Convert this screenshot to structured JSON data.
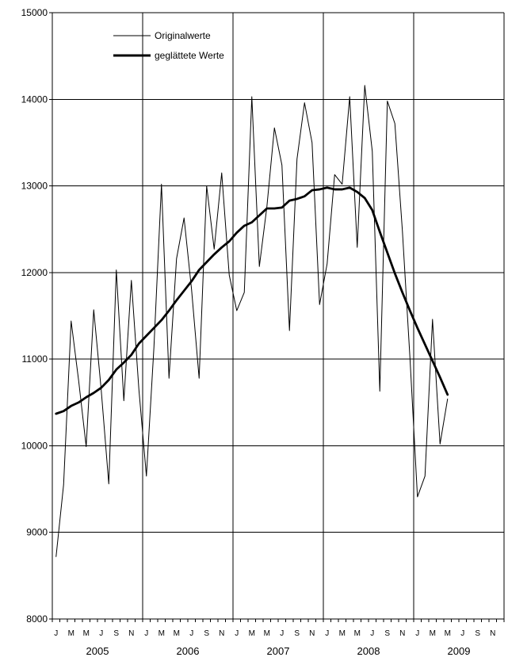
{
  "chart_data": {
    "type": "line",
    "title": "",
    "xlabel": "",
    "ylabel": "",
    "ylim": [
      8000,
      15000
    ],
    "yticks": [
      8000,
      9000,
      10000,
      11000,
      12000,
      13000,
      14000,
      15000
    ],
    "grid": true,
    "legend_position": "top-left",
    "month_labels": [
      "J",
      "M",
      "M",
      "J",
      "S",
      "N",
      "J",
      "M",
      "M",
      "J",
      "S",
      "N",
      "J",
      "M",
      "M",
      "J",
      "S",
      "N",
      "J",
      "M",
      "M",
      "J",
      "S",
      "N",
      "J",
      "M",
      "M",
      "J",
      "S",
      "N"
    ],
    "years": [
      "2005",
      "2006",
      "2007",
      "2008",
      "2009"
    ],
    "n_months": 60,
    "series": [
      {
        "name": "Originalwerte",
        "style": "thin",
        "start_month_index": 0,
        "values": [
          8720,
          9550,
          11440,
          10750,
          9990,
          11570,
          10640,
          9560,
          12030,
          10520,
          11910,
          10650,
          9650,
          11140,
          13020,
          10780,
          12160,
          12630,
          11800,
          10780,
          13000,
          12270,
          13150,
          11970,
          11560,
          11770,
          14030,
          12070,
          12760,
          13670,
          13240,
          11330,
          13310,
          13960,
          13500,
          11630,
          12100,
          13130,
          13020,
          14030,
          12290,
          14160,
          13400,
          10630,
          13980,
          13720,
          12480,
          11020,
          9410,
          9650,
          11460,
          10020,
          10540
        ]
      },
      {
        "name": "geglättete Werte",
        "style": "thick",
        "start_month_index": 0,
        "values": [
          10370,
          10400,
          10460,
          10500,
          10560,
          10610,
          10670,
          10760,
          10880,
          10960,
          11050,
          11180,
          11270,
          11360,
          11450,
          11560,
          11680,
          11790,
          11900,
          12030,
          12120,
          12210,
          12290,
          12360,
          12460,
          12540,
          12580,
          12660,
          12740,
          12740,
          12750,
          12830,
          12850,
          12880,
          12950,
          12960,
          12980,
          12960,
          12960,
          12980,
          12930,
          12860,
          12720,
          12470,
          12230,
          11990,
          11770,
          11560,
          11360,
          11170,
          10980,
          10790,
          10590
        ]
      }
    ]
  }
}
